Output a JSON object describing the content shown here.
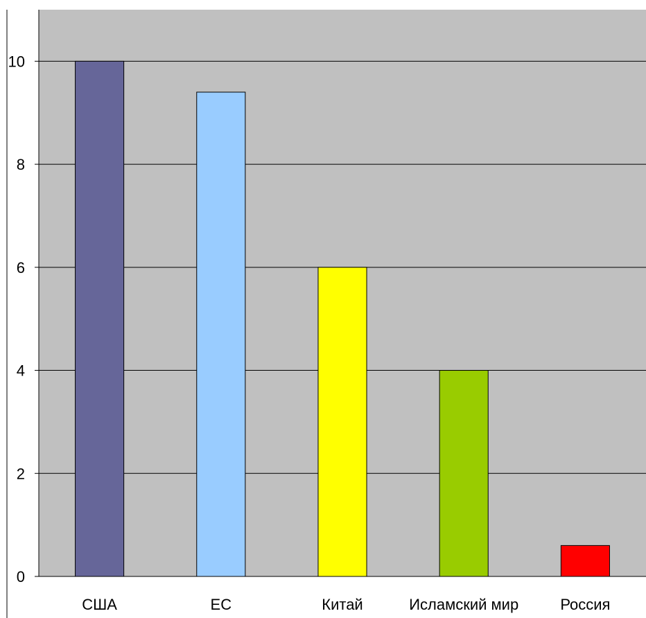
{
  "chart_data": {
    "type": "bar",
    "categories": [
      "США",
      "ЕС",
      "Китай",
      "Исламский мир",
      "Россия"
    ],
    "values": [
      10,
      9.4,
      6,
      4,
      0.6
    ],
    "colors": [
      "#666699",
      "#99CCFF",
      "#FFFF00",
      "#99CC00",
      "#FF0000"
    ],
    "ylim": [
      0,
      11
    ],
    "yticks": [
      0,
      2,
      4,
      6,
      8,
      10
    ],
    "ytick_labels": [
      "0",
      "2",
      "4",
      "6",
      "8",
      "10"
    ],
    "grid": true,
    "plot_background": "#C0C0C0",
    "title": "",
    "xlabel": "",
    "ylabel": ""
  }
}
